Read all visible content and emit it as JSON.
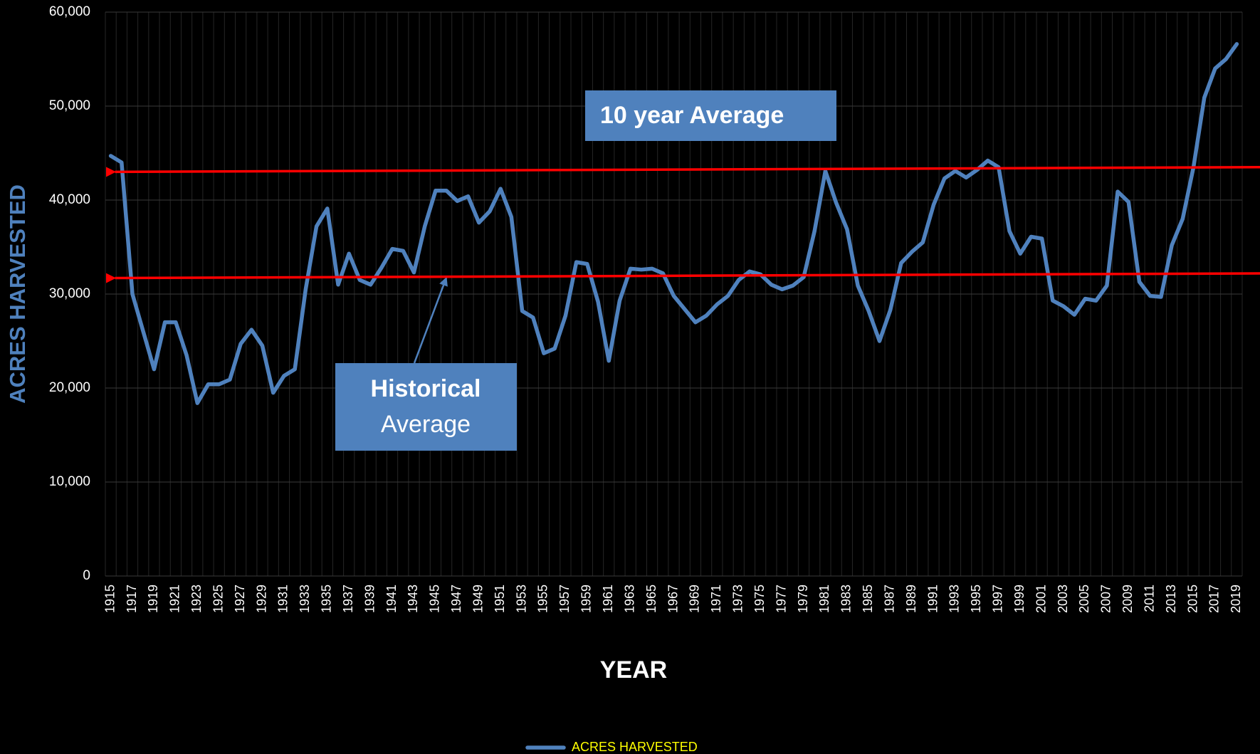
{
  "chart_data": {
    "type": "line",
    "xlabel": "YEAR",
    "ylabel": "ACRES HARVESTED",
    "ylabel_color": "#4f81bd",
    "categories": [
      "1915",
      null,
      "1917",
      null,
      "1919",
      null,
      "1921",
      null,
      "1923",
      null,
      "1925",
      null,
      "1927",
      null,
      "1929",
      null,
      "1931",
      null,
      "1933",
      null,
      "1935",
      null,
      "1937",
      null,
      "1939",
      null,
      "1941",
      null,
      "1943",
      null,
      "1945",
      null,
      "1947",
      null,
      "1949",
      null,
      "1951",
      null,
      "1953",
      null,
      "1955",
      null,
      "1957",
      null,
      "1959",
      null,
      "1961",
      null,
      "1963",
      null,
      "1965",
      null,
      "1967",
      null,
      "1969",
      null,
      "1971",
      null,
      "1973",
      null,
      "1975",
      null,
      "1977",
      null,
      "1979",
      null,
      "1981",
      null,
      "1983",
      null,
      "1985",
      null,
      "1987",
      null,
      "1989",
      null,
      "1991",
      null,
      "1993",
      null,
      "1995",
      null,
      "1997",
      null,
      "1999",
      null,
      "2001",
      null,
      "2003",
      null,
      "2005",
      null,
      "2007",
      null,
      "2009",
      null,
      "2011",
      null,
      "2013",
      null,
      "2015",
      null,
      "2017",
      null,
      "2019"
    ],
    "series": [
      {
        "name": "ACRES HARVESTED",
        "color": "#4f81bd",
        "values": [
          44700,
          44000,
          30000,
          26000,
          22000,
          27000,
          27000,
          23500,
          18400,
          20400,
          20400,
          20900,
          24700,
          26200,
          24500,
          19500,
          21300,
          22000,
          30500,
          37200,
          39100,
          31000,
          34300,
          31500,
          31000,
          32800,
          34800,
          34600,
          32300,
          37200,
          41000,
          41000,
          39900,
          40400,
          37600,
          38800,
          41200,
          38200,
          28200,
          27500,
          23700,
          24200,
          27700,
          33400,
          33200,
          29200,
          22900,
          29300,
          32700,
          32600,
          32700,
          32200,
          29800,
          28400,
          27000,
          27700,
          28900,
          29800,
          31500,
          32400,
          32100,
          31000,
          30500,
          30900,
          31800,
          36700,
          43100,
          39700,
          36900,
          30900,
          28200,
          25000,
          28300,
          33300,
          34500,
          35500,
          39500,
          42300,
          43100,
          42400,
          43200,
          44200,
          43500,
          36700,
          34300,
          36100,
          35900,
          29300,
          28700,
          27800,
          29500,
          29300,
          30900,
          40900,
          39800,
          31300,
          29800,
          29700,
          35200,
          38000,
          43500,
          50900,
          54000,
          55000,
          56600
        ]
      }
    ],
    "ylim": [
      0,
      60000
    ],
    "yticks": [
      0,
      {
        "value": 10000,
        "label": "10,000"
      },
      {
        "value": 20000,
        "label": "20,000"
      },
      {
        "value": 30000,
        "label": "30,000"
      },
      {
        "value": 40000,
        "label": "40,000"
      },
      {
        "value": 50000,
        "label": "50,000"
      },
      {
        "value": 60000,
        "label": "60,000"
      }
    ],
    "grid": true,
    "legend_position": "bottom",
    "legend_text_color": "#ffff00",
    "reference_lines": [
      {
        "y_start": 43000,
        "y_end": 43500,
        "color": "#ff0000"
      },
      {
        "y_start": 31700,
        "y_end": 32200,
        "color": "#ff0000"
      }
    ],
    "annotations": [
      {
        "text": "10 year Average"
      },
      {
        "lines": [
          "Historical",
          "Average"
        ]
      }
    ]
  }
}
